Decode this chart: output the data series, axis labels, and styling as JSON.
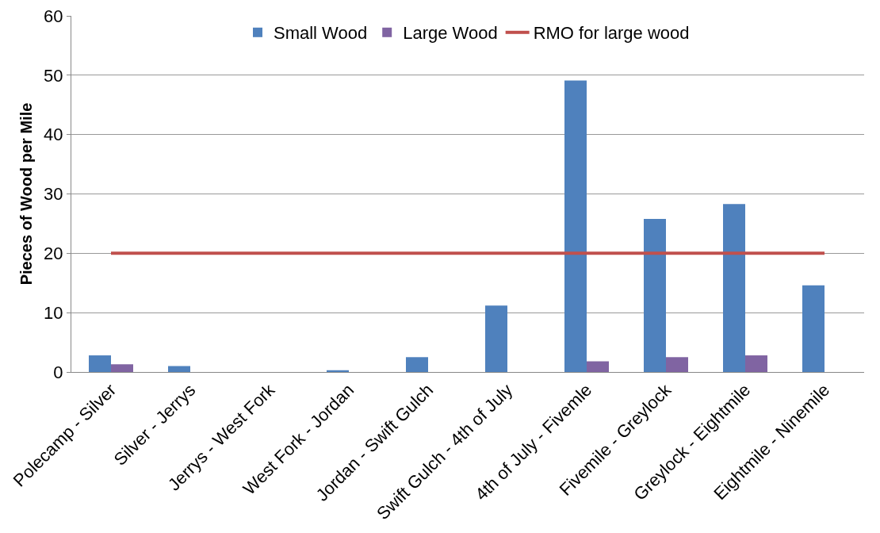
{
  "chart_data": {
    "type": "bar",
    "ylabel": "Pieces of Wood per Mile",
    "categories": [
      "Polecamp - Silver",
      "Silver - Jerrys",
      "Jerrys - West Fork",
      "West Fork - Jordan",
      "Jordan - Swift Gulch",
      "Swift Gulch - 4th of July",
      "4th of July - Fivemle",
      "Fivemile - Greylock",
      "Greylock - Eightmile",
      "Eightmile - Ninemile"
    ],
    "series": [
      {
        "name": "Small Wood",
        "color": "#4f81bd",
        "values": [
          2.8,
          1.0,
          0,
          0.3,
          2.5,
          11.2,
          49.1,
          25.8,
          28.3,
          14.6
        ]
      },
      {
        "name": "Large Wood",
        "color": "#8064a2",
        "values": [
          1.3,
          0,
          0,
          0,
          0,
          0,
          1.8,
          2.5,
          2.8,
          0
        ]
      },
      {
        "name": "RMO for large wood",
        "type": "line",
        "color": "#c0504d",
        "values": [
          20,
          20,
          20,
          20,
          20,
          20,
          20,
          20,
          20,
          20
        ]
      }
    ],
    "ylim": [
      0,
      60
    ],
    "yticks": [
      0,
      10,
      20,
      30,
      40,
      50,
      60
    ],
    "grid": "y",
    "legend": "top",
    "marker": "none",
    "line_style": "solid"
  }
}
